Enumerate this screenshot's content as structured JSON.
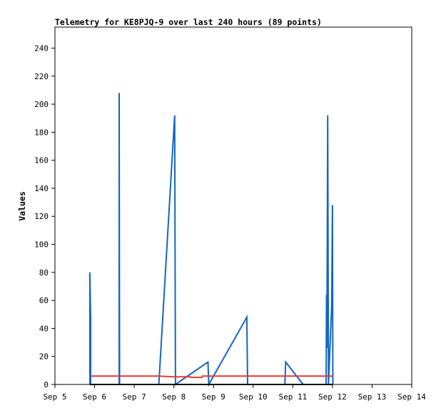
{
  "chart_data": {
    "type": "line",
    "title": "Telemetry for KE8PJQ-9 over last 240 hours (89 points)",
    "xlabel": "",
    "ylabel": "Values",
    "x_ticks": [
      "Sep 5",
      "Sep 6",
      "Sep 7",
      "Sep 8",
      "Sep 9",
      "Sep 10",
      "Sep 11",
      "Sep 12",
      "Sep 13",
      "Sep 14"
    ],
    "xlim": [
      0,
      9
    ],
    "ylim": [
      0,
      255
    ],
    "y_ticks": [
      0,
      20,
      40,
      60,
      80,
      100,
      120,
      140,
      160,
      180,
      200,
      220,
      240
    ],
    "grid": false,
    "legend": "none",
    "series": [
      {
        "color": "#1565c0",
        "points": [
          [
            0.88,
            0
          ],
          [
            0.88,
            80
          ],
          [
            0.9,
            48
          ],
          [
            0.9,
            0
          ],
          [
            1.62,
            0
          ],
          [
            1.62,
            208
          ],
          [
            1.63,
            0
          ],
          [
            2.62,
            0
          ],
          [
            3.02,
            192
          ],
          [
            3.04,
            0
          ],
          [
            3.86,
            16
          ],
          [
            3.88,
            0
          ],
          [
            4.84,
            48
          ],
          [
            4.86,
            0
          ],
          [
            5.8,
            0
          ],
          [
            5.82,
            16
          ],
          [
            6.26,
            0
          ],
          [
            6.84,
            0
          ],
          [
            6.85,
            64
          ],
          [
            6.86,
            26
          ],
          [
            6.88,
            192
          ],
          [
            6.9,
            0
          ],
          [
            6.98,
            56
          ],
          [
            7.0,
            128
          ],
          [
            7.01,
            0
          ]
        ]
      },
      {
        "color": "#e53935",
        "points": [
          [
            0.9,
            6
          ],
          [
            2.62,
            6
          ],
          [
            3.0,
            5.5
          ],
          [
            3.4,
            5.5
          ],
          [
            3.45,
            5
          ],
          [
            3.7,
            5
          ],
          [
            3.72,
            6
          ],
          [
            5.2,
            6
          ],
          [
            6.26,
            6
          ],
          [
            7.01,
            6
          ]
        ]
      },
      {
        "color": "#000000",
        "points": [
          [
            0.88,
            0
          ],
          [
            7.01,
            0
          ]
        ]
      }
    ]
  }
}
